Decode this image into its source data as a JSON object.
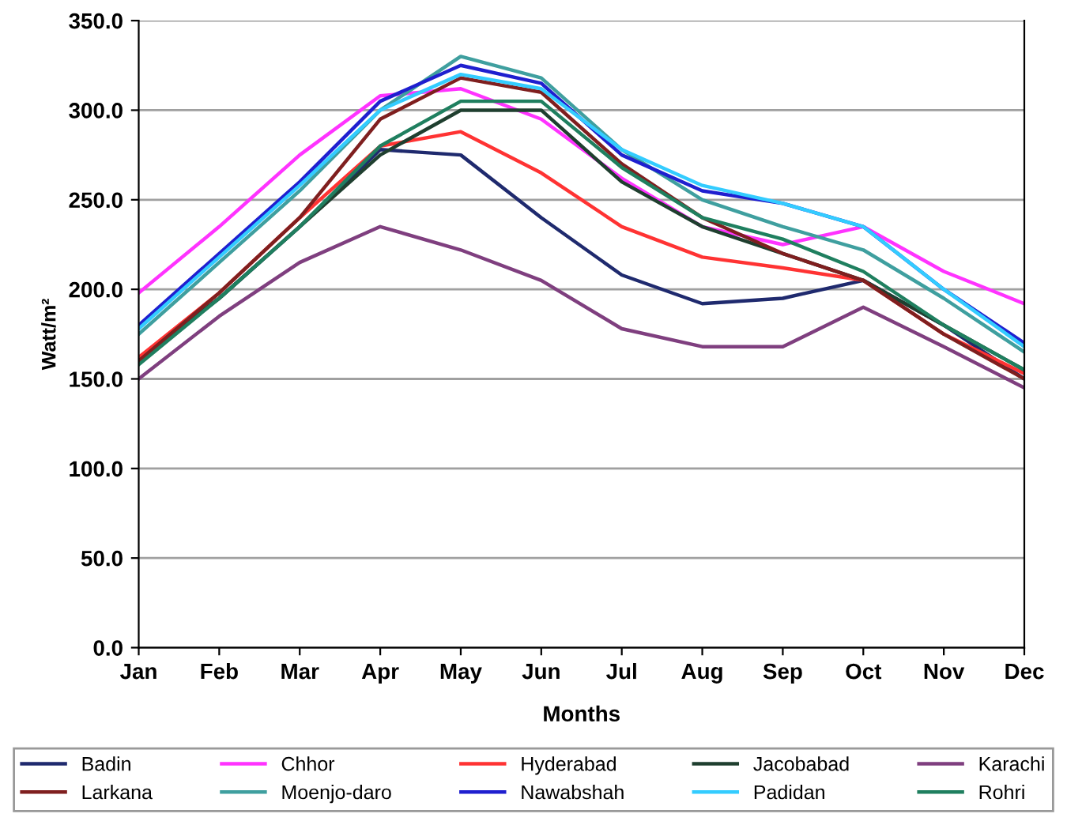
{
  "chart_data": {
    "type": "line",
    "xlabel": "Months",
    "ylabel": "Watt/m²",
    "categories": [
      "Jan",
      "Feb",
      "Mar",
      "Apr",
      "May",
      "Jun",
      "Jul",
      "Aug",
      "Sep",
      "Oct",
      "Nov",
      "Dec"
    ],
    "ylim": [
      0,
      350
    ],
    "yticks": [
      {
        "value": 0,
        "label": "0.0"
      },
      {
        "value": 50,
        "label": "50.0"
      },
      {
        "value": 100,
        "label": "100.0"
      },
      {
        "value": 150,
        "label": "150.0"
      },
      {
        "value": 200,
        "label": "200.0"
      },
      {
        "value": 250,
        "label": "250.0"
      },
      {
        "value": 300,
        "label": "300.0"
      },
      {
        "value": 350,
        "label": "350.0"
      }
    ],
    "grid": "y",
    "legend": "bottom",
    "marker": "none",
    "line_style": "solid",
    "series": [
      {
        "name": "Badin",
        "color": "#1f2a6e",
        "values": [
          162,
          195,
          235,
          278,
          275,
          240,
          208,
          192,
          195,
          205,
          180,
          150
        ]
      },
      {
        "name": "Chhor",
        "color": "#ff33ff",
        "values": [
          198,
          235,
          275,
          308,
          312,
          295,
          262,
          235,
          225,
          235,
          210,
          192
        ]
      },
      {
        "name": "Hyderabad",
        "color": "#ff3333",
        "values": [
          162,
          198,
          240,
          280,
          288,
          265,
          235,
          218,
          212,
          205,
          175,
          153
        ]
      },
      {
        "name": "Jacobabad",
        "color": "#1f3f2f",
        "values": [
          160,
          195,
          235,
          275,
          300,
          300,
          260,
          235,
          220,
          205,
          180,
          155
        ]
      },
      {
        "name": "Karachi",
        "color": "#7f3f7f",
        "values": [
          150,
          185,
          215,
          235,
          222,
          205,
          178,
          168,
          168,
          190,
          168,
          145
        ]
      },
      {
        "name": "Larkana",
        "color": "#7f1f1f",
        "values": [
          160,
          198,
          240,
          295,
          318,
          310,
          270,
          240,
          220,
          205,
          175,
          150
        ]
      },
      {
        "name": "Moenjo-daro",
        "color": "#3f9f9f",
        "values": [
          175,
          215,
          255,
          300,
          330,
          318,
          278,
          250,
          235,
          222,
          195,
          165
        ]
      },
      {
        "name": "Nawabshah",
        "color": "#1f1fcf",
        "values": [
          180,
          220,
          260,
          305,
          325,
          315,
          275,
          255,
          248,
          235,
          200,
          170
        ]
      },
      {
        "name": "Padidan",
        "color": "#33ccff",
        "values": [
          178,
          218,
          258,
          300,
          320,
          312,
          278,
          258,
          248,
          235,
          200,
          168
        ]
      },
      {
        "name": "Rohri",
        "color": "#1f7f5f",
        "values": [
          158,
          195,
          235,
          280,
          305,
          305,
          268,
          240,
          228,
          210,
          180,
          155
        ]
      }
    ]
  }
}
